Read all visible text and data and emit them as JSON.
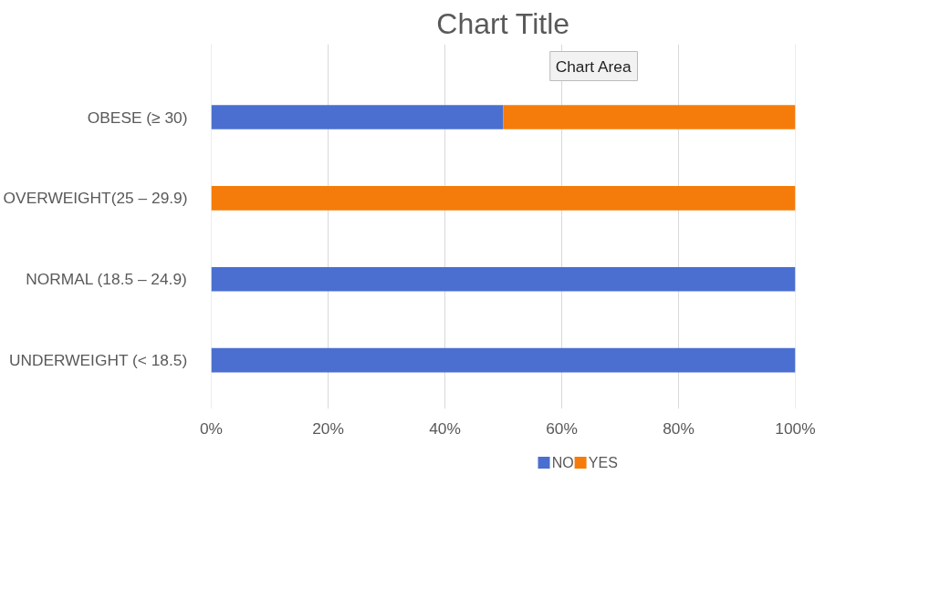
{
  "chart_data": {
    "type": "bar",
    "orientation": "horizontal",
    "stacked": true,
    "title": "Chart Title",
    "categories": [
      "OBESE (≥ 30)",
      "OVERWEIGHT(25 – 29.9)",
      "NORMAL (18.5 – 24.9)",
      "UNDERWEIGHT (< 18.5)"
    ],
    "series": [
      {
        "name": "NO",
        "color": "#4a6fd0",
        "values": [
          50,
          0,
          100,
          100
        ]
      },
      {
        "name": "YES",
        "color": "#f57c0a",
        "values": [
          50,
          100,
          0,
          0
        ]
      }
    ],
    "xlim": [
      0,
      100
    ],
    "xticks": [
      {
        "value": 0,
        "label": "0%"
      },
      {
        "value": 20,
        "label": "20%"
      },
      {
        "value": 40,
        "label": "40%"
      },
      {
        "value": 60,
        "label": "60%"
      },
      {
        "value": 80,
        "label": "80%"
      },
      {
        "value": 100,
        "label": "100%"
      }
    ],
    "grid": "x",
    "legend": "bottom",
    "annotations": [
      "Chart Area"
    ]
  }
}
